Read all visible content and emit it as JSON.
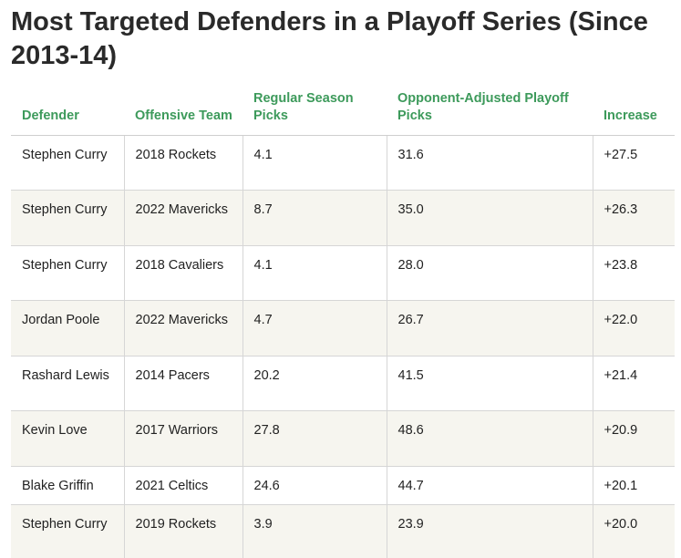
{
  "title": "Most Targeted Defenders in a Playoff Series (Since 2013-14)",
  "colors": {
    "header_text": "#3d9a5b",
    "title_text": "#2a2a2a",
    "stripe": "#f6f5ef",
    "grid": "#d6d6d6"
  },
  "table": {
    "headers": [
      "Defender",
      "Offensive Team",
      "Regular Season Picks",
      "Opponent-Adjusted Playoff Picks",
      "Increase"
    ],
    "rows": [
      [
        "Stephen Curry",
        "2018 Rockets",
        "4.1",
        "31.6",
        "+27.5"
      ],
      [
        "Stephen Curry",
        "2022 Mavericks",
        "8.7",
        "35.0",
        "+26.3"
      ],
      [
        "Stephen Curry",
        "2018 Cavaliers",
        "4.1",
        "28.0",
        "+23.8"
      ],
      [
        "Jordan Poole",
        "2022 Mavericks",
        "4.7",
        "26.7",
        "+22.0"
      ],
      [
        "Rashard Lewis",
        "2014 Pacers",
        "20.2",
        "41.5",
        "+21.4"
      ],
      [
        "Kevin Love",
        "2017 Warriors",
        "27.8",
        "48.6",
        "+20.9"
      ],
      [
        "Blake Griffin",
        "2021 Celtics",
        "24.6",
        "44.7",
        "+20.1"
      ],
      [
        "Stephen Curry",
        "2019 Rockets",
        "3.9",
        "23.9",
        "+20.0"
      ]
    ]
  }
}
